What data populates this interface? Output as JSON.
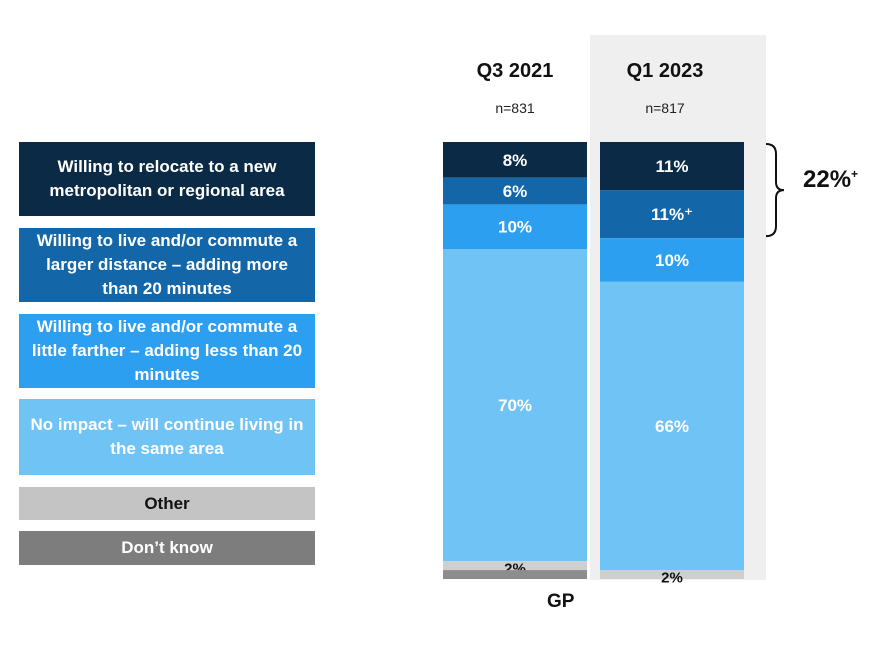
{
  "chart_data": {
    "type": "bar",
    "stacked": true,
    "group_label": "GP",
    "columns": [
      {
        "label": "Q3 2021",
        "n": "n=831"
      },
      {
        "label": "Q1 2023",
        "n": "n=817"
      }
    ],
    "series": [
      {
        "name": "Willing to relocate to a new metropolitan or regional area",
        "color": "#0b2a45",
        "text_color": "#ffffff",
        "values": [
          8,
          11
        ],
        "labels": [
          "8%",
          "11%"
        ]
      },
      {
        "name": "Willing to live and/or commute a larger distance – adding more than 20 minutes",
        "color": "#1367a9",
        "text_color": "#ffffff",
        "values": [
          6,
          11
        ],
        "labels": [
          "6%",
          "11%⁺"
        ]
      },
      {
        "name": "Willing to live and/or commute a little farther – adding less than 20 minutes",
        "color": "#2c9ff0",
        "text_color": "#ffffff",
        "values": [
          10,
          10
        ],
        "labels": [
          "10%",
          "10%"
        ]
      },
      {
        "name": "No impact – will continue living in the same area",
        "color": "#6fc3f5",
        "text_color": "#ffffff",
        "values": [
          70,
          66
        ],
        "labels": [
          "70%",
          "66%"
        ]
      },
      {
        "name": "Other",
        "color": "#cfcfcf",
        "text_color": "#111111",
        "values": [
          2,
          2
        ],
        "labels": [
          "2%",
          "2%"
        ]
      },
      {
        "name": "Don’t know",
        "color": "#8d8d8d",
        "text_color": "#ffffff",
        "values": [
          2,
          0
        ],
        "labels": [
          "",
          ""
        ]
      }
    ],
    "bracket": {
      "label": "22%",
      "sup": "+",
      "column": 1,
      "series": [
        0,
        1
      ]
    }
  },
  "legend": [
    {
      "label": "Willing to relocate to a new metropolitan or regional area",
      "bg": "#0b2a45",
      "color": "#ffffff"
    },
    {
      "label": "Willing to live and/or commute a larger distance – adding more than 20 minutes",
      "bg": "#1367a9",
      "color": "#ffffff"
    },
    {
      "label": "Willing to live and/or commute a little farther – adding less than 20 minutes",
      "bg": "#2c9ff0",
      "color": "#ffffff"
    },
    {
      "label": "No impact – will continue living in the same area",
      "bg": "#6fc3f5",
      "color": "#ffffff"
    },
    {
      "label": "Other",
      "bg": "#c4c4c4",
      "color": "#111111"
    },
    {
      "label": "Don’t know",
      "bg": "#7d7d7d",
      "color": "#ffffff"
    }
  ]
}
